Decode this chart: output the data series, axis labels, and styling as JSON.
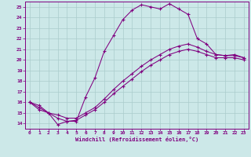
{
  "xlabel": "Windchill (Refroidissement éolien,°C)",
  "bg_color": "#cce8e8",
  "line_color": "#800080",
  "grid_color": "#aacccc",
  "xlim": [
    -0.5,
    23.5
  ],
  "ylim": [
    13.5,
    25.5
  ],
  "yticks": [
    14,
    15,
    16,
    17,
    18,
    19,
    20,
    21,
    22,
    23,
    24,
    25
  ],
  "xticks": [
    0,
    1,
    2,
    3,
    4,
    5,
    6,
    7,
    8,
    9,
    10,
    11,
    12,
    13,
    14,
    15,
    16,
    17,
    18,
    19,
    20,
    21,
    22,
    23
  ],
  "line1_x": [
    0,
    1,
    2,
    3,
    4,
    5,
    6,
    7,
    8,
    9,
    10,
    11,
    12,
    13,
    14,
    15,
    16,
    17,
    18,
    19,
    20,
    21,
    22,
    23
  ],
  "line1_y": [
    16.0,
    15.7,
    15.0,
    13.9,
    14.2,
    14.2,
    16.5,
    18.3,
    20.8,
    22.3,
    23.8,
    24.7,
    25.2,
    25.0,
    24.8,
    25.3,
    24.8,
    24.3,
    22.0,
    21.5,
    20.5,
    20.4,
    20.5,
    20.2
  ],
  "line2_x": [
    0,
    1,
    2,
    3,
    4,
    5,
    6,
    7,
    8,
    9,
    10,
    11,
    12,
    13,
    14,
    15,
    16,
    17,
    18,
    19,
    20,
    21,
    22,
    23
  ],
  "line2_y": [
    16.0,
    15.5,
    15.0,
    14.8,
    14.5,
    14.5,
    15.0,
    15.5,
    16.3,
    17.2,
    18.0,
    18.7,
    19.4,
    20.0,
    20.5,
    21.0,
    21.3,
    21.5,
    21.2,
    20.8,
    20.5,
    20.4,
    20.4,
    20.2
  ],
  "line3_x": [
    0,
    1,
    2,
    3,
    4,
    5,
    6,
    7,
    8,
    9,
    10,
    11,
    12,
    13,
    14,
    15,
    16,
    17,
    18,
    19,
    20,
    21,
    22,
    23
  ],
  "line3_y": [
    16.0,
    15.3,
    15.0,
    14.5,
    14.2,
    14.3,
    14.8,
    15.3,
    16.0,
    16.8,
    17.5,
    18.2,
    18.9,
    19.5,
    20.0,
    20.5,
    20.8,
    21.0,
    20.8,
    20.5,
    20.2,
    20.2,
    20.2,
    20.0
  ]
}
